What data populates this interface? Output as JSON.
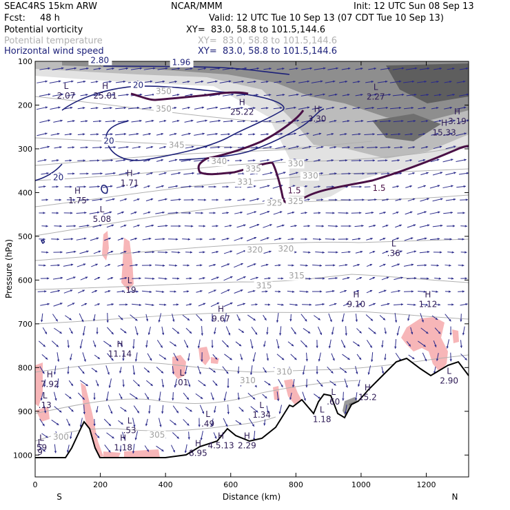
{
  "header": {
    "model": "SEAC4RS 15km ARW",
    "center": "NCAR/MMM",
    "init": "Init: 12 UTC Sun 08 Sep 13",
    "fcst_label": "Fcst:",
    "fcst_value": "48 h",
    "valid": "Valid: 12 UTC Tue 10 Sep 13 (07 CDT Tue 10 Sep 13)",
    "fields": [
      {
        "name": "Potential vorticity",
        "xy": "XY=  83.0, 58.8 to 101.5,144.6",
        "color": "#000000"
      },
      {
        "name": "Potential temperature",
        "xy": "XY=  83.0, 58.8 to 101.5,144.6",
        "color": "#b0b0b0"
      },
      {
        "name": "Horizontal wind speed",
        "xy": "XY=  83.0, 58.8 to 101.5,144.6",
        "color": "#1b1f78"
      }
    ]
  },
  "colors": {
    "pv_contour": "#4a1046",
    "wind_contour": "#1b1f78",
    "theta_contour": "#b0b0b0",
    "vector": "#2a2a8a",
    "pink_shade": "#f7b6b8",
    "terrain": "#000000"
  },
  "chart_data": {
    "type": "cross-section",
    "xlabel": "Distance (km)",
    "ylabel": "Pressure (hPa)",
    "xlim": [
      0,
      1330
    ],
    "ylim": [
      1050,
      100
    ],
    "x_ticks": [
      0,
      200,
      400,
      600,
      800,
      1000,
      1200
    ],
    "y_ticks": [
      100,
      200,
      300,
      400,
      500,
      600,
      700,
      800,
      900,
      1000
    ],
    "end_labels": {
      "left": "S",
      "right": "N"
    },
    "theta_labels": [
      {
        "text": "350",
        "x": 370,
        "p": 175
      },
      {
        "text": "350",
        "x": 370,
        "p": 215
      },
      {
        "text": "345",
        "x": 410,
        "p": 298
      },
      {
        "text": "340",
        "x": 540,
        "p": 335
      },
      {
        "text": "335",
        "x": 645,
        "p": 352
      },
      {
        "text": "330",
        "x": 775,
        "p": 340
      },
      {
        "text": "330",
        "x": 820,
        "p": 368
      },
      {
        "text": "331",
        "x": 620,
        "p": 382
      },
      {
        "text": "325",
        "x": 710,
        "p": 430
      },
      {
        "text": "325",
        "x": 775,
        "p": 426
      },
      {
        "text": "320",
        "x": 650,
        "p": 537
      },
      {
        "text": "320",
        "x": 745,
        "p": 535
      },
      {
        "text": "315",
        "x": 678,
        "p": 619
      },
      {
        "text": "315",
        "x": 778,
        "p": 596
      },
      {
        "text": "310",
        "x": 628,
        "p": 836
      },
      {
        "text": "310",
        "x": 740,
        "p": 816
      },
      {
        "text": "305",
        "x": 350,
        "p": 960
      },
      {
        "text": "300",
        "x": 55,
        "p": 965
      }
    ],
    "pv_labels": [
      {
        "text": "1.5",
        "x": 775,
        "p": 402
      },
      {
        "text": "1.5",
        "x": 1035,
        "p": 396
      }
    ],
    "wind_labels": [
      {
        "text": "20",
        "x": 300,
        "p": 161
      },
      {
        "text": "20",
        "x": 210,
        "p": 288
      },
      {
        "text": "20",
        "x": 55,
        "p": 372
      },
      {
        "text": "1.96",
        "x": 420,
        "p": 109
      },
      {
        "text": "2.80",
        "x": 170,
        "p": 104
      }
    ],
    "extrema": [
      {
        "type": "L",
        "value": "2.07",
        "x": 95,
        "p": 180
      },
      {
        "type": "H",
        "value": "25.01",
        "x": 215,
        "p": 180
      },
      {
        "type": "H",
        "value": "25.22",
        "x": 635,
        "p": 217
      },
      {
        "type": "H",
        "value": "3.30",
        "x": 865,
        "p": 233
      },
      {
        "type": "L",
        "value": "2.27",
        "x": 1045,
        "p": 183
      },
      {
        "type": "H",
        "value": "3.19",
        "x": 1295,
        "p": 239
      },
      {
        "type": "H",
        "value": "15.33",
        "x": 1255,
        "p": 265
      },
      {
        "type": "H",
        "value": "1.71",
        "x": 290,
        "p": 380
      },
      {
        "type": "H",
        "value": "1.75",
        "x": 130,
        "p": 420
      },
      {
        "type": "L",
        "value": "5.08",
        "x": 205,
        "p": 462
      },
      {
        "type": "L",
        "value": ".36",
        "x": 1100,
        "p": 540
      },
      {
        "type": "L",
        "value": ".19",
        "x": 290,
        "p": 625
      },
      {
        "type": "H",
        "value": "9.67",
        "x": 570,
        "p": 690
      },
      {
        "type": "H",
        "value": "9.10",
        "x": 985,
        "p": 657
      },
      {
        "type": "H",
        "value": "1.12",
        "x": 1205,
        "p": 657
      },
      {
        "type": "H",
        "value": "11.14",
        "x": 260,
        "p": 770
      },
      {
        "type": "H",
        "value": "7.92",
        "x": 45,
        "p": 840
      },
      {
        "type": "L",
        "value": ".01",
        "x": 450,
        "p": 836
      },
      {
        "type": "L",
        "value": "2.90",
        "x": 1270,
        "p": 832
      },
      {
        "type": "L",
        "value": ".13",
        "x": 30,
        "p": 888
      },
      {
        "type": "L",
        "value": "1.34",
        "x": 695,
        "p": 910
      },
      {
        "type": "L",
        "value": ".60",
        "x": 915,
        "p": 880
      },
      {
        "type": "H",
        "value": "15.2",
        "x": 1020,
        "p": 870
      },
      {
        "type": "L",
        "value": "1.18",
        "x": 880,
        "p": 920
      },
      {
        "type": "L",
        "value": ".53",
        "x": 290,
        "p": 945
      },
      {
        "type": "L",
        "value": ".49",
        "x": 530,
        "p": 930
      },
      {
        "type": "H",
        "value": "1.18",
        "x": 270,
        "p": 985
      },
      {
        "type": "H",
        "value": "8.95",
        "x": 500,
        "p": 997
      },
      {
        "type": "H",
        "value": "4.5.13",
        "x": 570,
        "p": 980
      },
      {
        "type": "H",
        "value": "2.29",
        "x": 650,
        "p": 980
      },
      {
        "type": "L",
        "value": "59",
        "x": 20,
        "p": 985
      },
      {
        "type": "L",
        "value": "9",
        "x": 15,
        "p": 995
      }
    ]
  }
}
